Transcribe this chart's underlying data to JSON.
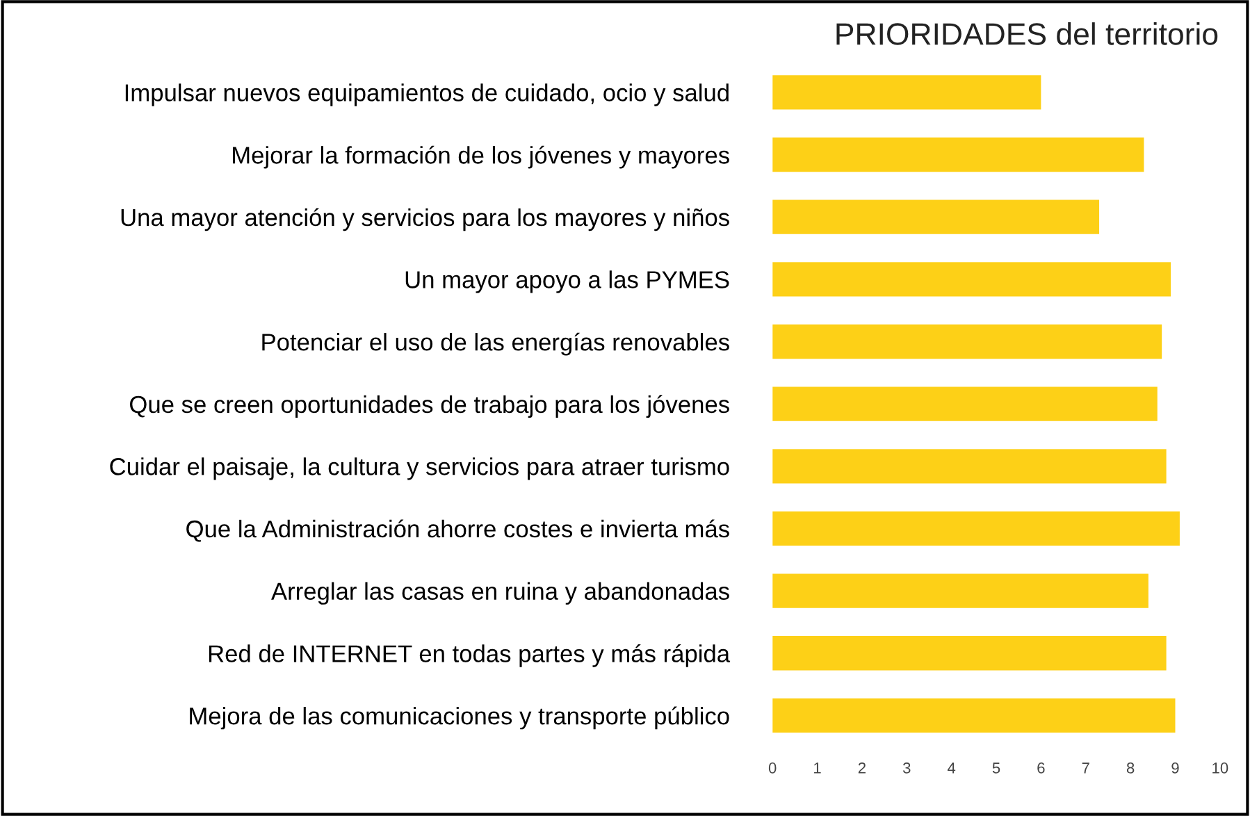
{
  "chart_data": {
    "type": "bar",
    "orientation": "horizontal",
    "title": "PRIORIDADES del territorio",
    "categories": [
      "Impulsar nuevos equipamientos de cuidado, ocio y salud",
      "Mejorar la formación de los jóvenes y mayores",
      "Una mayor atención y servicios para los mayores y niños",
      "Un mayor apoyo a las PYMES",
      "Potenciar el uso de las energías renovables",
      "Que se creen oportunidades de trabajo para los jóvenes",
      "Cuidar el paisaje, la cultura y servicios para atraer turismo",
      "Que la Administración ahorre costes e invierta más",
      "Arreglar las casas en ruina y abandonadas",
      "Red de INTERNET en todas partes y más rápida",
      "Mejora de las comunicaciones y transporte público"
    ],
    "values": [
      6.0,
      8.3,
      7.3,
      8.9,
      8.7,
      8.6,
      8.8,
      9.1,
      8.4,
      8.8,
      9.0
    ],
    "color": "#fdd017",
    "xlim": [
      0,
      10
    ],
    "xticks": [
      0,
      1,
      2,
      3,
      4,
      5,
      6,
      7,
      8,
      9,
      10
    ],
    "grid": false
  }
}
